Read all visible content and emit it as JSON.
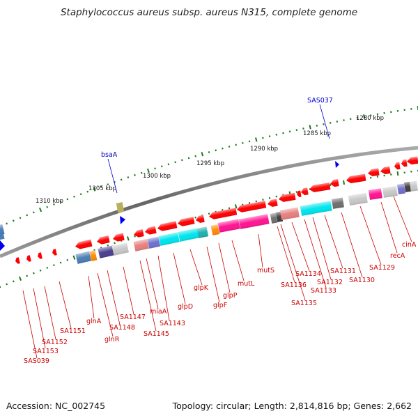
{
  "title": "Staphylococcus aureus subsp. aureus N315, complete genome",
  "footer": {
    "accession": "Accession: NC_002745",
    "summary": "Topology: circular; Length: 2,814,816 bp; Genes: 2,662"
  },
  "colors": {
    "background": "#ffffff",
    "backbone": "#777777",
    "tick": "#1a7a1a",
    "scale_label": "#111111",
    "gene_label_red": "#cc0000",
    "gene_label_blue": "#0000cc",
    "forward_strand": "#0000ff",
    "reverse_strand": "#ff0000",
    "cog_olive": "#b8b060",
    "cog_steel": "#4a7fb5",
    "cog_orange": "#ff8c00",
    "cog_indigo": "#4b3f8f",
    "cog_silver": "#c8c8c8",
    "cog_salmon": "#e88080",
    "cog_slate": "#7070d0",
    "cog_cyan": "#00e5ee",
    "cog_teal": "#20b0b0",
    "cog_magenta": "#ff1493",
    "cog_gray": "#707070",
    "cog_dark": "#404040",
    "cog_purple": "#8a4fc0"
  },
  "scale_labels": [
    "1280 kbp",
    "1285 kbp",
    "1290 kbp",
    "1295 kbp",
    "1300 kbp",
    "1305 kbp",
    "1310 kbp"
  ],
  "forward_labels": [
    "SAS037",
    "bsaA"
  ],
  "reverse_labels": [
    "cinA",
    "recA",
    "SA1129",
    "SA1130",
    "SA1131",
    "SA1132",
    "SA1133",
    "SA1134",
    "SA1135",
    "SA1136",
    "mutS",
    "mutL",
    "glpP",
    "glpF",
    "glpK",
    "glpD",
    "SA1143",
    "miaA",
    "SA1145",
    "SA1147",
    "SA1148",
    "glnR",
    "glnA",
    "SA1151",
    "SA1152",
    "SA1153",
    "SAS039"
  ]
}
